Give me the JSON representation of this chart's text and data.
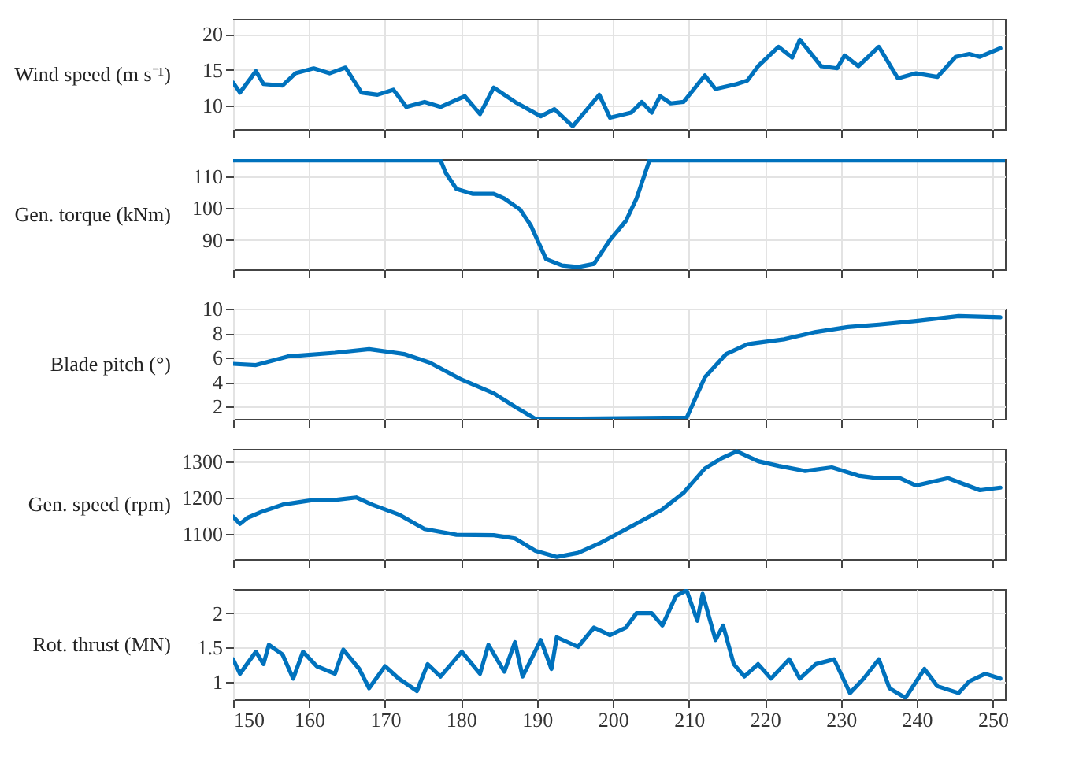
{
  "chart_data": [
    {
      "type": "line",
      "ylabel": "Wind speed (m s⁻¹)",
      "color": "#0072bd",
      "xlim": [
        150,
        251.6
      ],
      "xticks": [
        150,
        160,
        170,
        180,
        190,
        200,
        210,
        220,
        230,
        240,
        250
      ],
      "ylim": [
        6.7,
        22.1
      ],
      "yticks": [
        10,
        15,
        20
      ],
      "grid": true,
      "tick_labels": "y",
      "x": [
        150,
        150.9,
        153,
        154,
        156.5,
        158.2,
        160.6,
        162.7,
        164.8,
        166.9,
        169,
        171.1,
        172.8,
        175.2,
        177.3,
        180.5,
        182.5,
        184.3,
        187.1,
        190.5,
        192.3,
        194.7,
        198.2,
        199.6,
        202.4,
        203.8,
        205.1,
        206.2,
        207.6,
        209.3,
        212.1,
        213.5,
        216.3,
        217.7,
        219.1,
        221.8,
        223.6,
        224.6,
        227.4,
        229.5,
        230.5,
        232.3,
        235,
        237.5,
        239.9,
        242.7,
        245.1,
        246.9,
        248.3,
        251
      ],
      "values": [
        13.2,
        11.8,
        14.8,
        13,
        12.8,
        14.5,
        15.2,
        14.5,
        15.3,
        11.8,
        11.5,
        12.2,
        9.8,
        10.5,
        9.8,
        11.3,
        8.8,
        12.5,
        10.5,
        8.5,
        9.5,
        7.1,
        11.5,
        8.3,
        9,
        10.5,
        9,
        11.3,
        10.3,
        10.5,
        14.2,
        12.3,
        13,
        13.5,
        15.5,
        18.2,
        16.7,
        19.2,
        15.5,
        15.2,
        17,
        15.5,
        18.2,
        13.8,
        14.5,
        14,
        16.8,
        17.2,
        16.8,
        18
      ]
    },
    {
      "type": "line",
      "ylabel": "Gen. torque (kNm)",
      "color": "#0072bd",
      "xlim": [
        150,
        251.6
      ],
      "xticks": [
        150,
        160,
        170,
        180,
        190,
        200,
        210,
        220,
        230,
        240,
        250
      ],
      "ylim": [
        80.8,
        115.4
      ],
      "yticks": [
        90,
        100,
        110
      ],
      "grid": true,
      "tick_labels": "y",
      "x": [
        150,
        177.3,
        178,
        179.4,
        181.5,
        184.3,
        185.7,
        187.8,
        189.2,
        191.2,
        193.3,
        195.4,
        197.5,
        199.6,
        201.7,
        203.1,
        204.8,
        251.6
      ],
      "values": [
        115,
        115,
        111,
        106,
        104.5,
        104.5,
        103,
        99.5,
        94.5,
        84,
        82,
        81.5,
        82.5,
        90,
        96,
        103,
        115,
        115
      ]
    },
    {
      "type": "line",
      "ylabel": "Blade pitch (°)",
      "color": "#0072bd",
      "xlim": [
        150,
        251.6
      ],
      "xticks": [
        150,
        160,
        170,
        180,
        190,
        200,
        210,
        220,
        230,
        240,
        250
      ],
      "ylim": [
        1,
        10
      ],
      "yticks": [
        2,
        4,
        6,
        8,
        10
      ],
      "grid": true,
      "tick_labels": "y",
      "x": [
        150,
        153,
        157.2,
        163.4,
        167.9,
        172.5,
        175.9,
        180.1,
        184.3,
        187.1,
        189.8,
        209.7,
        212.1,
        214.9,
        217.7,
        222.5,
        226.7,
        230.9,
        235,
        239.9,
        245.5,
        251
      ],
      "values": [
        5.5,
        5.4,
        6.1,
        6.4,
        6.7,
        6.3,
        5.6,
        4.2,
        3.1,
        2,
        1,
        1.1,
        4.4,
        6.3,
        7.1,
        7.5,
        8.1,
        8.5,
        8.7,
        9,
        9.4,
        9.3
      ]
    },
    {
      "type": "line",
      "ylabel": "Gen. speed (rpm)",
      "color": "#0072bd",
      "xlim": [
        150,
        251.6
      ],
      "xticks": [
        150,
        160,
        170,
        180,
        190,
        200,
        210,
        220,
        230,
        240,
        250
      ],
      "ylim": [
        1030,
        1334
      ],
      "yticks": [
        1100,
        1200,
        1300
      ],
      "grid": true,
      "tick_labels": "y",
      "x": [
        150,
        150.9,
        151.9,
        153.7,
        156.5,
        160.6,
        163.4,
        166.2,
        168.3,
        171.8,
        175.2,
        179.4,
        184.3,
        187.1,
        189.8,
        192.6,
        195.4,
        198.2,
        202.4,
        206.5,
        209.3,
        212.1,
        214.2,
        216.3,
        219.1,
        221.8,
        225.3,
        228.8,
        232.3,
        235,
        237.8,
        239.9,
        244.1,
        248.3,
        251
      ],
      "values": [
        1147,
        1127,
        1144,
        1160,
        1180,
        1193,
        1193,
        1200,
        1180,
        1153,
        1113,
        1097,
        1096,
        1087,
        1053,
        1036,
        1047,
        1073,
        1120,
        1167,
        1213,
        1280,
        1307,
        1327,
        1300,
        1287,
        1273,
        1283,
        1260,
        1253,
        1253,
        1233,
        1253,
        1220,
        1227
      ]
    },
    {
      "type": "line",
      "ylabel": "Rot. thrust (MN)",
      "color": "#0072bd",
      "xlim": [
        150,
        251.6
      ],
      "xticks": [
        150,
        160,
        170,
        180,
        190,
        200,
        210,
        220,
        230,
        240,
        250
      ],
      "ylim": [
        0.75,
        2.35
      ],
      "yticks": [
        1,
        1.5,
        2
      ],
      "grid": true,
      "x": [
        150,
        150.9,
        153,
        154,
        154.7,
        156.5,
        157.9,
        159.2,
        161,
        163.4,
        164.5,
        166.6,
        167.9,
        170,
        171.8,
        174.2,
        175.6,
        177.3,
        180.1,
        182.5,
        183.6,
        185.7,
        187.1,
        188.1,
        190.5,
        191.9,
        192.6,
        195.4,
        197.5,
        199.6,
        201.7,
        203.1,
        205.1,
        206.5,
        208.3,
        209.7,
        211.1,
        211.8,
        213.5,
        214.5,
        215.9,
        217.3,
        219.1,
        220.8,
        223.2,
        224.6,
        226.7,
        229.1,
        231.2,
        233,
        235,
        236.4,
        238.5,
        241,
        242.7,
        245.5,
        246.9,
        249,
        251
      ],
      "values": [
        1.33,
        1.12,
        1.44,
        1.26,
        1.54,
        1.4,
        1.05,
        1.44,
        1.23,
        1.12,
        1.47,
        1.19,
        0.91,
        1.23,
        1.05,
        0.87,
        1.26,
        1.08,
        1.44,
        1.12,
        1.54,
        1.15,
        1.58,
        1.08,
        1.61,
        1.19,
        1.65,
        1.51,
        1.79,
        1.68,
        1.79,
        2,
        2,
        1.82,
        2.25,
        2.33,
        1.89,
        2.28,
        1.61,
        1.82,
        1.26,
        1.08,
        1.26,
        1.05,
        1.33,
        1.05,
        1.26,
        1.33,
        0.84,
        1.05,
        1.33,
        0.91,
        0.77,
        1.19,
        0.94,
        0.84,
        1.01,
        1.12,
        1.05
      ]
    }
  ]
}
